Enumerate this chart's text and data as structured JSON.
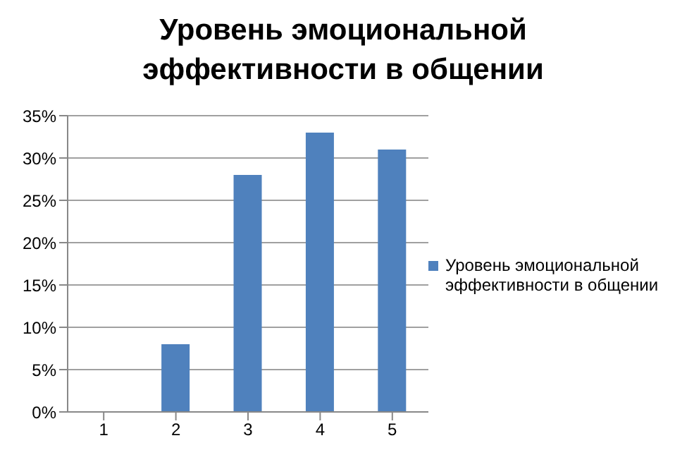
{
  "chart_data": {
    "type": "bar",
    "title": "Уровень эмоциональной эффективности в общении",
    "categories": [
      "1",
      "2",
      "3",
      "4",
      "5"
    ],
    "series": [
      {
        "name": "Уровень эмоциональной эффективности в общении",
        "color": "#4f81bd",
        "values": [
          0,
          8,
          28,
          33,
          31
        ]
      }
    ],
    "ylim": [
      0,
      35
    ],
    "yticks": [
      {
        "value": 0,
        "label": "0%"
      },
      {
        "value": 5,
        "label": "5%"
      },
      {
        "value": 10,
        "label": "10%"
      },
      {
        "value": 15,
        "label": "15%"
      },
      {
        "value": 20,
        "label": "20%"
      },
      {
        "value": 25,
        "label": "25%"
      },
      {
        "value": 30,
        "label": "30%"
      },
      {
        "value": 35,
        "label": "35%"
      }
    ],
    "grid": "y",
    "legend": "right"
  }
}
